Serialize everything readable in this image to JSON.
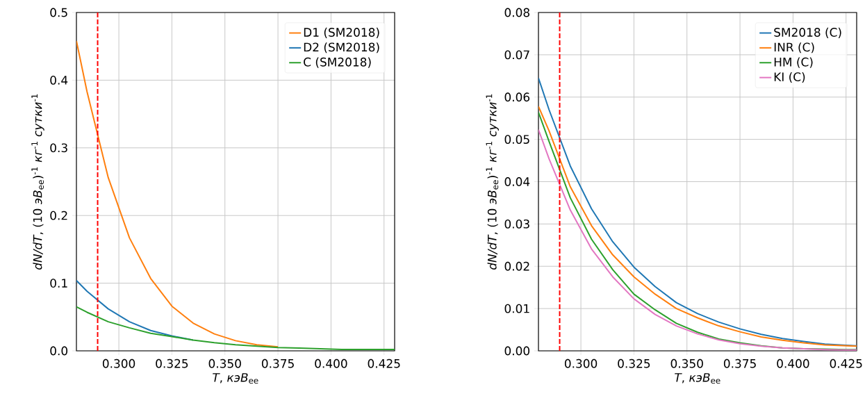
{
  "chart_data": [
    {
      "type": "line",
      "xlabel": "*T*, *кэВ*$_{ee}$",
      "ylabel": "*dN/dT*, (10 *эВ*$_{ee}$)$^{-1}$ *кг*$^{-1}$ *сутки*$^{-1}$",
      "x": [
        0.28,
        0.285,
        0.295,
        0.305,
        0.315,
        0.325,
        0.335,
        0.345,
        0.355,
        0.365,
        0.375,
        0.385,
        0.395,
        0.405,
        0.415,
        0.425,
        0.43
      ],
      "series": [
        {
          "name": "D1 (SM2018)",
          "color": "#ff7f0e",
          "values": [
            0.458,
            0.383,
            0.256,
            0.167,
            0.107,
            0.066,
            0.041,
            0.025,
            0.015,
            0.009,
            0.006,
            null,
            null,
            null,
            null,
            null,
            null
          ]
        },
        {
          "name": "D2 (SM2018)",
          "color": "#1f77b4",
          "values": [
            0.104,
            0.088,
            0.062,
            0.043,
            0.03,
            0.022,
            0.016,
            null,
            null,
            null,
            null,
            null,
            null,
            null,
            null,
            null,
            null
          ]
        },
        {
          "name": "C (SM2018)",
          "color": "#2ca02c",
          "values": [
            0.065,
            0.057,
            0.043,
            0.034,
            0.026,
            0.021,
            0.016,
            0.012,
            0.009,
            0.007,
            0.005,
            0.004,
            0.003,
            0.002,
            0.002,
            0.002,
            0.002
          ]
        }
      ],
      "xlim": [
        0.28,
        0.43
      ],
      "ylim": [
        0,
        0.5
      ],
      "xticks": [
        {
          "value": 0.3,
          "label": "0.300"
        },
        {
          "value": 0.325,
          "label": "0.325"
        },
        {
          "value": 0.35,
          "label": "0.350"
        },
        {
          "value": 0.375,
          "label": "0.375"
        },
        {
          "value": 0.4,
          "label": "0.400"
        },
        {
          "value": 0.425,
          "label": "0.425"
        }
      ],
      "yticks": [
        {
          "value": 0,
          "label": "0.0"
        },
        0.1,
        0.2,
        0.3,
        0.4,
        0.5
      ],
      "ref_lines": [
        {
          "axis": "x",
          "value": 0.29,
          "color": "#ff0000",
          "line_style": "dashed"
        }
      ],
      "grid": true,
      "legend": "top right",
      "line_style": "solid",
      "marker": "none"
    },
    {
      "type": "line",
      "xlabel": "*T*, *кэВ*$_{ee}$",
      "ylabel": "*dN/dT*, (10 *эВ*$_{ee}$)$^{-1}$ *кг*$^{-1}$ *сутки*$^{-1}$",
      "x": [
        0.28,
        0.285,
        0.295,
        0.305,
        0.315,
        0.325,
        0.335,
        0.345,
        0.355,
        0.365,
        0.375,
        0.385,
        0.395,
        0.405,
        0.415,
        0.425,
        0.43
      ],
      "series": [
        {
          "name": "SM2018 (C)",
          "color": "#1f77b4",
          "values": [
            0.0645,
            0.057,
            0.0437,
            0.0336,
            0.0258,
            0.0198,
            0.0152,
            0.0114,
            0.0088,
            0.0068,
            0.0052,
            0.0039,
            0.0029,
            0.0022,
            0.0016,
            0.0013,
            0.0012
          ]
        },
        {
          "name": "INR (C)",
          "color": "#ff7f0e",
          "values": [
            0.0578,
            0.052,
            0.0388,
            0.0296,
            0.0227,
            0.0175,
            0.0134,
            0.01,
            0.0078,
            0.0059,
            0.0045,
            0.0033,
            0.0025,
            0.0019,
            0.0014,
            0.0012,
            0.0011
          ]
        },
        {
          "name": "HM (C)",
          "color": "#2ca02c",
          "values": [
            0.0564,
            0.0495,
            0.0362,
            0.0264,
            0.0192,
            0.0134,
            0.0097,
            0.0065,
            0.0044,
            0.0028,
            0.0019,
            0.0012,
            0.0007,
            0.0005,
            0.0004,
            0.0003,
            0.0003
          ]
        },
        {
          "name": "KI (C)",
          "color": "#e377c2",
          "values": [
            0.0523,
            0.0454,
            0.0333,
            0.0241,
            0.0175,
            0.0123,
            0.0086,
            0.0059,
            0.004,
            0.0026,
            0.0017,
            0.0011,
            0.0007,
            0.0005,
            0.0003,
            0.0002,
            0.0002
          ]
        }
      ],
      "xlim": [
        0.28,
        0.43
      ],
      "ylim": [
        0,
        0.08
      ],
      "xticks": [
        {
          "value": 0.3,
          "label": "0.300"
        },
        {
          "value": 0.325,
          "label": "0.325"
        },
        {
          "value": 0.35,
          "label": "0.350"
        },
        {
          "value": 0.375,
          "label": "0.375"
        },
        {
          "value": 0.4,
          "label": "0.400"
        },
        {
          "value": 0.425,
          "label": "0.425"
        }
      ],
      "yticks": [
        {
          "value": 0,
          "label": "0.00"
        },
        {
          "value": 0.01,
          "label": "0.01"
        },
        {
          "value": 0.02,
          "label": "0.02"
        },
        {
          "value": 0.03,
          "label": "0.03"
        },
        {
          "value": 0.04,
          "label": "0.04"
        },
        {
          "value": 0.05,
          "label": "0.05"
        },
        {
          "value": 0.06,
          "label": "0.06"
        },
        {
          "value": 0.07,
          "label": "0.07"
        },
        {
          "value": 0.08,
          "label": "0.08"
        }
      ],
      "ref_lines": [
        {
          "axis": "x",
          "value": 0.29,
          "color": "#ff0000",
          "line_style": "dashed"
        }
      ],
      "grid": true,
      "legend": "top right",
      "line_style": "solid",
      "marker": "none"
    }
  ]
}
